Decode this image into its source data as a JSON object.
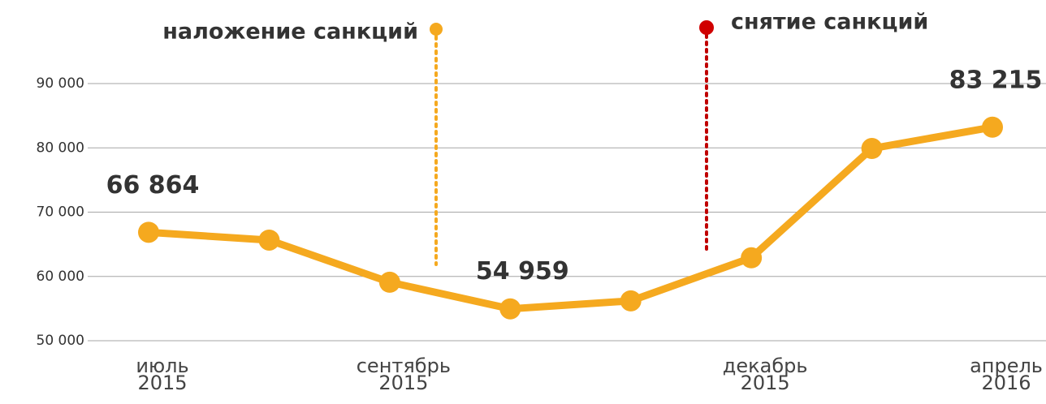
{
  "chart_data": {
    "type": "line",
    "categories": [
      [
        "июль",
        "2015"
      ],
      null,
      [
        "сентябрь",
        "2015"
      ],
      null,
      null,
      [
        "декабрь",
        "2015"
      ],
      null,
      [
        "апрель",
        "2016"
      ]
    ],
    "series": [
      {
        "color": "#f5a91f",
        "values": [
          66864,
          65650,
          59100,
          54959,
          56200,
          62900,
          79900,
          83215
        ],
        "value_labels": [
          "66 864",
          null,
          null,
          "54 959",
          null,
          null,
          null,
          "83 215"
        ]
      }
    ],
    "ylim": [
      50000,
      90000
    ],
    "yticks": [
      {
        "value": 50000,
        "label": "50 000"
      },
      {
        "value": 60000,
        "label": "60 000"
      },
      {
        "value": 70000,
        "label": "70 000"
      },
      {
        "value": 80000,
        "label": "80 000"
      },
      {
        "value": 90000,
        "label": "90 000"
      }
    ],
    "grid": true,
    "annotations": [
      {
        "text": "наложение санкций",
        "color": "#f5a91f"
      },
      {
        "text": "снятие санкций",
        "color": "#c00000"
      }
    ]
  }
}
